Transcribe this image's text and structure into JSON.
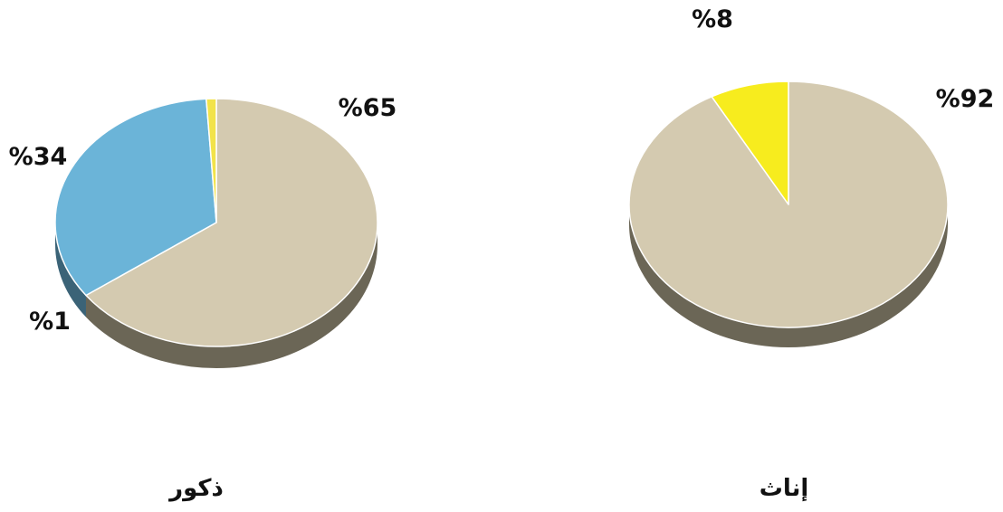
{
  "chart_data": [
    {
      "type": "pie",
      "title": "ذكور",
      "slices": [
        {
          "label": "%65",
          "value": 65,
          "color": "#d4cab0"
        },
        {
          "label": "%34",
          "value": 34,
          "color": "#6bb4d8"
        },
        {
          "label": "%1",
          "value": 1,
          "color": "#f2e34a"
        }
      ]
    },
    {
      "type": "pie",
      "title": "إناث",
      "slices": [
        {
          "label": "%92",
          "value": 92,
          "color": "#d4cab0"
        },
        {
          "label": "%8",
          "value": 8,
          "color": "#f7ec1e"
        }
      ]
    }
  ]
}
